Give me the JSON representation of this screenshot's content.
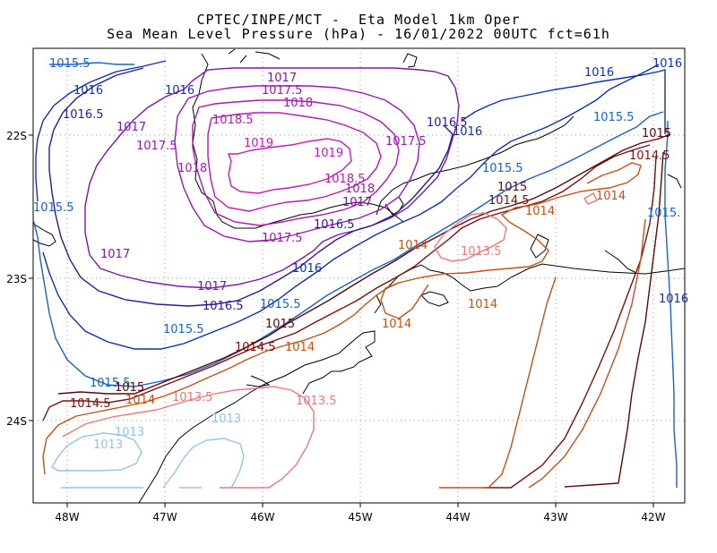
{
  "title_line1": "CPTEC/INPE/MCT -  Eta Model 1km Oper",
  "title_line2": "Sea Mean Level Pressure (hPa) - 16/01/2022 00UTC fct=61h",
  "lon_ticks": [
    "48W",
    "47W",
    "46W",
    "45W",
    "44W",
    "43W",
    "42W"
  ],
  "lat_ticks": [
    "22S",
    "23S",
    "24S"
  ],
  "colors": {
    "c1013": "#94c4ec",
    "c1013_5": "#ee7777",
    "c1014": "#c4501a",
    "c1014_5": "#7a1010",
    "c1015": "#5a0a0a",
    "c1015_5": "#1a62c4",
    "c1016": "#1030b0",
    "c1016_5": "#2a1a98",
    "c1017": "#7a18a8",
    "c1017_5": "#9a18b8",
    "c1018": "#a818b0",
    "c1018_5": "#b818b0",
    "c1019": "#c818b8",
    "coast": "#000000"
  },
  "contour_labels": [
    {
      "t": "1015.5",
      "c": "c1015_5"
    },
    {
      "t": "1016",
      "c": "c1016"
    },
    {
      "t": "1016.5",
      "c": "c1016_5"
    },
    {
      "t": "1017",
      "c": "c1017"
    },
    {
      "t": "1017.5",
      "c": "c1017_5"
    },
    {
      "t": "1017",
      "c": "c1017"
    },
    {
      "t": "1017.5",
      "c": "c1017_5"
    },
    {
      "t": "1018",
      "c": "c1018"
    },
    {
      "t": "1018.5",
      "c": "c1018_5"
    },
    {
      "t": "1019",
      "c": "c1019"
    },
    {
      "t": "1019",
      "c": "c1019"
    },
    {
      "t": "1018",
      "c": "c1018"
    },
    {
      "t": "1018.5",
      "c": "c1018_5"
    },
    {
      "t": "1018",
      "c": "c1018"
    },
    {
      "t": "1017.5",
      "c": "c1017_5"
    },
    {
      "t": "1017",
      "c": "c1017"
    },
    {
      "t": "1016.5",
      "c": "c1016_5"
    },
    {
      "t": "1017.5",
      "c": "c1017_5"
    },
    {
      "t": "1016.5",
      "c": "c1016_5"
    },
    {
      "t": "1016",
      "c": "c1016"
    },
    {
      "t": "1016",
      "c": "c1016"
    },
    {
      "t": "1016",
      "c": "c1016"
    },
    {
      "t": "1015.5",
      "c": "c1015_5"
    },
    {
      "t": "1015.5",
      "c": "c1015_5"
    },
    {
      "t": "1015",
      "c": "c1015"
    },
    {
      "t": "1014.5",
      "c": "c1014_5"
    },
    {
      "t": "1015",
      "c": "c1015"
    },
    {
      "t": "1014.5",
      "c": "c1014_5"
    },
    {
      "t": "1014",
      "c": "c1014"
    },
    {
      "t": "1014",
      "c": "c1014"
    },
    {
      "t": "1015.5",
      "c": "c1015_5"
    },
    {
      "t": "1015.",
      "c": "c1015_5"
    },
    {
      "t": "1013.5",
      "c": "c1013_5"
    },
    {
      "t": "1014",
      "c": "c1014"
    },
    {
      "t": "1014",
      "c": "c1014"
    },
    {
      "t": "1014",
      "c": "c1014"
    },
    {
      "t": "1017",
      "c": "c1017"
    },
    {
      "t": "1017",
      "c": "c1017"
    },
    {
      "t": "1016.5",
      "c": "c1016_5"
    },
    {
      "t": "1015.5",
      "c": "c1015_5"
    },
    {
      "t": "1016",
      "c": "c1016"
    },
    {
      "t": "1015",
      "c": "c1015"
    },
    {
      "t": "1014.5",
      "c": "c1014_5"
    },
    {
      "t": "1014",
      "c": "c1014"
    },
    {
      "t": "1015.5",
      "c": "c1015_5"
    },
    {
      "t": "1015",
      "c": "c1015"
    },
    {
      "t": "1014.5",
      "c": "c1014_5"
    },
    {
      "t": "1014",
      "c": "c1014"
    },
    {
      "t": "1013.5",
      "c": "c1013_5"
    },
    {
      "t": "1013.5",
      "c": "c1013_5"
    },
    {
      "t": "1013",
      "c": "c1013"
    },
    {
      "t": "1013",
      "c": "c1013"
    },
    {
      "t": "1013",
      "c": "c1013"
    },
    {
      "t": "1016",
      "c": "c1016"
    },
    {
      "t": "1015.5",
      "c": "c1015_5"
    },
    {
      "t": "1016",
      "c": "c1016"
    }
  ]
}
